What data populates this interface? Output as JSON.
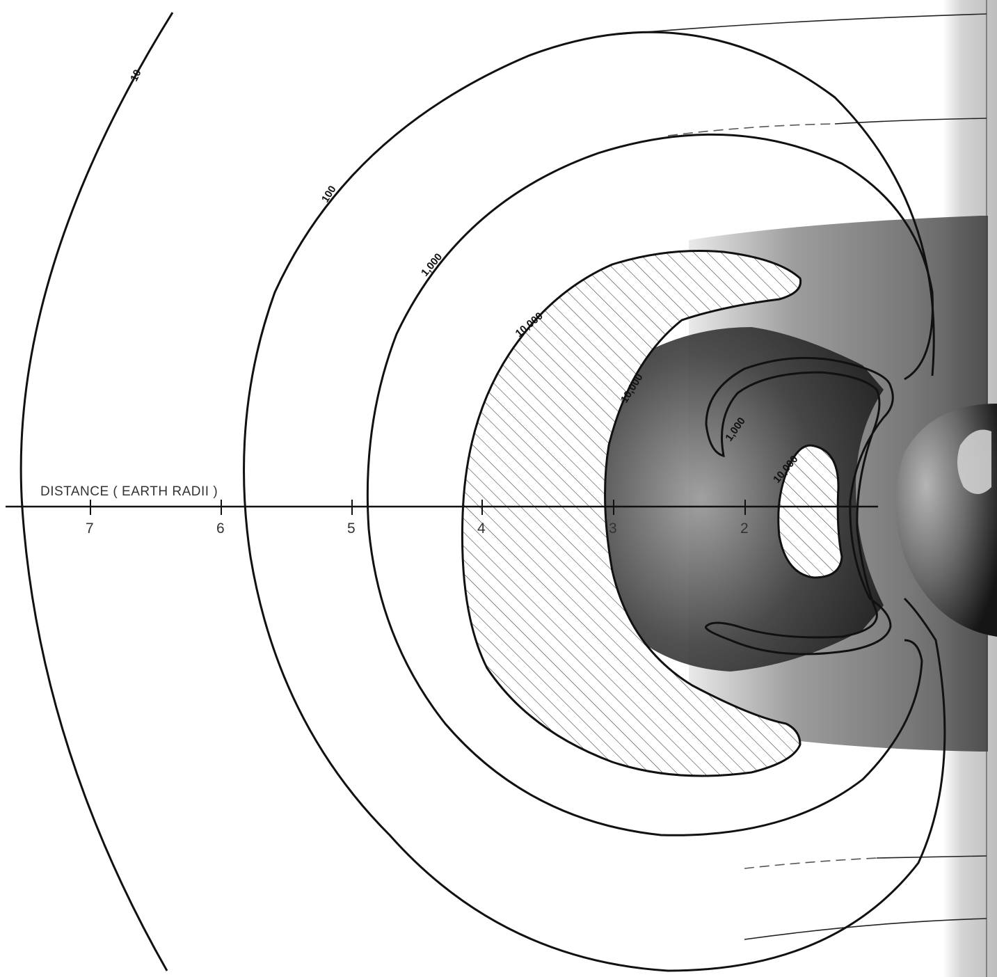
{
  "axis": {
    "title": "DISTANCE   ( EARTH  RADII )",
    "ticks": [
      "7",
      "6",
      "5",
      "4",
      "3",
      "2"
    ]
  },
  "contours": {
    "c10": "10",
    "c100": "100",
    "c1000_outer": "1,000",
    "c10000_outer": "10,000",
    "c10000_mid": "10,000",
    "c1000_inner": "1,000",
    "c10000_inner": "10,000"
  },
  "colors": {
    "contour": "#111111",
    "shading_dark": "#3a3a3a",
    "shading_light": "#d9d9d9",
    "page_fold": "#b8b8b8"
  }
}
